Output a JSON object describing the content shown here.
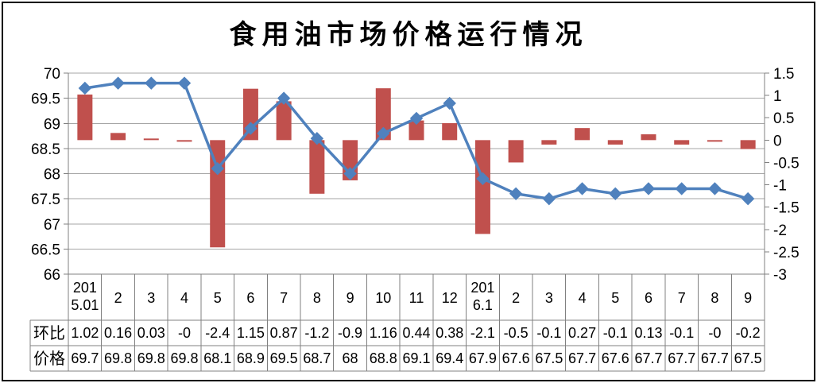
{
  "title": "食用油市场价格运行情况",
  "chart_data": {
    "type": "bar+line combo, dual axis",
    "title": "食用油市场价格运行情况",
    "categories": [
      "2015.01",
      "2",
      "3",
      "4",
      "5",
      "6",
      "7",
      "8",
      "9",
      "10",
      "11",
      "12",
      "2016.1",
      "2",
      "3",
      "4",
      "5",
      "6",
      "7",
      "8",
      "9"
    ],
    "series": [
      {
        "name": "环比",
        "type": "bar",
        "axis": "right",
        "color": "#C0504D",
        "values": [
          1.02,
          0.16,
          0.03,
          -0.0,
          -2.4,
          1.15,
          0.87,
          -1.2,
          -0.9,
          1.16,
          0.44,
          0.38,
          -2.1,
          -0.5,
          -0.1,
          0.27,
          -0.1,
          0.13,
          -0.1,
          -0.0,
          -0.2
        ]
      },
      {
        "name": "价格",
        "type": "line",
        "axis": "left",
        "color": "#4F81BD",
        "values": [
          69.7,
          69.8,
          69.8,
          69.8,
          68.1,
          68.9,
          69.5,
          68.7,
          68.0,
          68.8,
          69.1,
          69.4,
          67.9,
          67.6,
          67.5,
          67.7,
          67.6,
          67.7,
          67.7,
          67.7,
          67.5
        ]
      }
    ],
    "left_axis": {
      "min": 66,
      "max": 70,
      "step": 0.5,
      "tick_labels": [
        "70",
        "69.5",
        "69",
        "68.5",
        "68",
        "67.5",
        "67",
        "66.5",
        "66"
      ]
    },
    "right_axis": {
      "min": -3,
      "max": 1.5,
      "step": 0.5,
      "tick_labels": [
        "1.5",
        "1",
        "0.5",
        "0",
        "-0.5",
        "-1",
        "-1.5",
        "-2",
        "-2.5",
        "-3"
      ]
    },
    "grid": true,
    "legend": "none"
  },
  "table": {
    "category_cells": [
      "201\n5.01",
      "2",
      "3",
      "4",
      "5",
      "6",
      "7",
      "8",
      "9",
      "10",
      "11",
      "12",
      "201\n6.1",
      "2",
      "3",
      "4",
      "5",
      "6",
      "7",
      "8",
      "9"
    ],
    "rows": [
      {
        "header": "环比",
        "cells": [
          "1.02",
          "0.16",
          "0.03",
          "-0",
          "-2.4",
          "1.15",
          "0.87",
          "-1.2",
          "-0.9",
          "1.16",
          "0.44",
          "0.38",
          "-2.1",
          "-0.5",
          "-0.1",
          "0.27",
          "-0.1",
          "0.13",
          "-0.1",
          "-0",
          "-0.2"
        ]
      },
      {
        "header": "价格",
        "cells": [
          "69.7",
          "69.8",
          "69.8",
          "69.8",
          "68.1",
          "68.9",
          "69.5",
          "68.7",
          "68",
          "68.8",
          "69.1",
          "69.4",
          "67.9",
          "67.6",
          "67.5",
          "67.7",
          "67.6",
          "67.7",
          "67.7",
          "67.7",
          "67.5"
        ]
      }
    ]
  },
  "colors": {
    "bar": "#C0504D",
    "line": "#4F81BD",
    "marker": "#4F81BD",
    "gridline": "#A6A6A6",
    "axis_line": "#808080",
    "table_border": "#808080",
    "text": "#000000",
    "background": "#FFFFFF",
    "outer_border": "#000000"
  }
}
